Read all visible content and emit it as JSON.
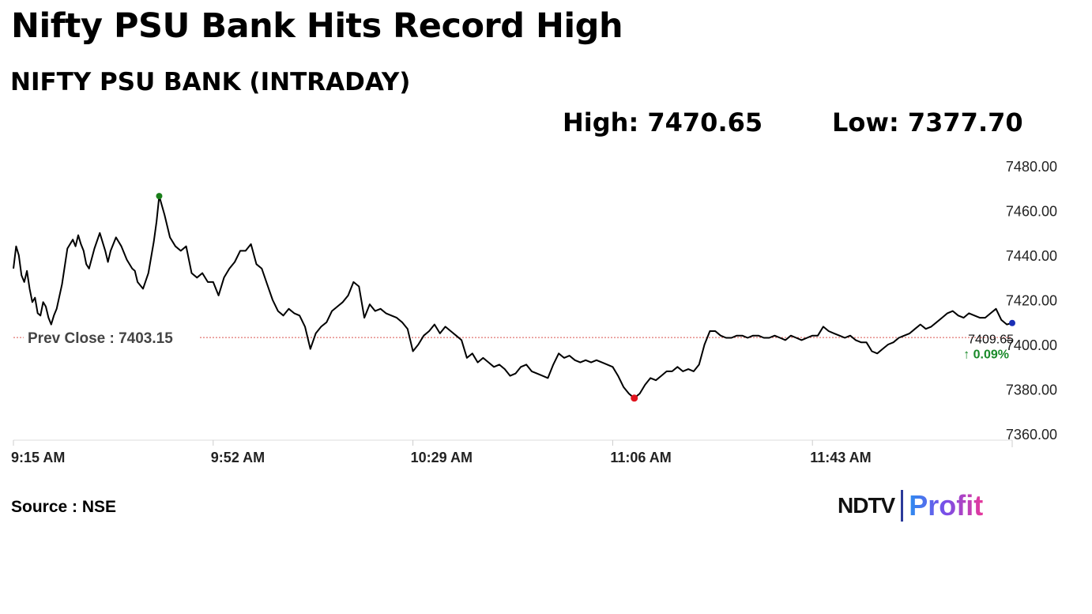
{
  "headline": "Nifty PSU Bank Hits Record High",
  "subheadline": "NIFTY PSU BANK (INTRADAY)",
  "stats": {
    "high": "High: 7470.65",
    "low": "Low: 7377.70"
  },
  "source": "Source : NSE",
  "logo": {
    "ndtv": "NDTV",
    "profit": "Profit"
  },
  "colors": {
    "line": "#000000",
    "high_marker": "#1a7f1a",
    "low_marker": "#e0141e",
    "last_marker": "#1a2fb5",
    "prev_close_line": "#d9534f",
    "change_up": "#1a8a2a",
    "axis_text": "#222222"
  },
  "chart_data": {
    "type": "line",
    "title": "NIFTY PSU BANK (INTRADAY)",
    "xlabel": "",
    "ylabel": "",
    "x_ticks": [
      "9:15 AM",
      "9:52 AM",
      "10:29 AM",
      "11:06 AM",
      "11:43 AM"
    ],
    "y_ticks": [
      "7480.00",
      "7460.00",
      "7440.00",
      "7420.00",
      "7400.00",
      "7380.00",
      "7360.00"
    ],
    "ylim": [
      7360,
      7480
    ],
    "x_range_minutes": [
      0,
      185
    ],
    "grid": false,
    "y_axis_side": "right",
    "prev_close": {
      "value": 7403.15,
      "label": "Prev Close : 7403.15"
    },
    "last": {
      "value": 7409.65,
      "label": "7409.65",
      "change": "↑ 0.09%"
    },
    "high": {
      "value": 7466.5,
      "time": 27
    },
    "low": {
      "value": 7376.0,
      "time": 115
    },
    "series": [
      {
        "values": [
          [
            0,
            7434
          ],
          [
            0.5,
            7444
          ],
          [
            1,
            7440
          ],
          [
            1.5,
            7431
          ],
          [
            2,
            7428
          ],
          [
            2.5,
            7433
          ],
          [
            3,
            7425
          ],
          [
            3.5,
            7419
          ],
          [
            4,
            7421
          ],
          [
            4.5,
            7414
          ],
          [
            5,
            7413
          ],
          [
            5.5,
            7419
          ],
          [
            6,
            7417
          ],
          [
            6.5,
            7412
          ],
          [
            7,
            7409
          ],
          [
            7.5,
            7413
          ],
          [
            8,
            7416
          ],
          [
            9,
            7427
          ],
          [
            10,
            7443
          ],
          [
            11,
            7447
          ],
          [
            11.5,
            7444
          ],
          [
            12,
            7449
          ],
          [
            12.5,
            7445
          ],
          [
            13,
            7442
          ],
          [
            13.5,
            7436
          ],
          [
            14,
            7434
          ],
          [
            15,
            7443
          ],
          [
            16,
            7450
          ],
          [
            17,
            7442
          ],
          [
            17.5,
            7437
          ],
          [
            18,
            7442
          ],
          [
            19,
            7448
          ],
          [
            20,
            7444
          ],
          [
            21,
            7438
          ],
          [
            22,
            7434
          ],
          [
            22.5,
            7433
          ],
          [
            23,
            7428
          ],
          [
            24,
            7425
          ],
          [
            25,
            7432
          ],
          [
            26,
            7446
          ],
          [
            26.5,
            7455
          ],
          [
            27,
            7466.5
          ],
          [
            28,
            7458
          ],
          [
            29,
            7448
          ],
          [
            30,
            7444
          ],
          [
            31,
            7442
          ],
          [
            32,
            7444
          ],
          [
            33,
            7432
          ],
          [
            34,
            7430
          ],
          [
            35,
            7432
          ],
          [
            36,
            7428
          ],
          [
            37,
            7428
          ],
          [
            38,
            7422
          ],
          [
            39,
            7430
          ],
          [
            40,
            7434
          ],
          [
            41,
            7437
          ],
          [
            42,
            7442
          ],
          [
            43,
            7442
          ],
          [
            44,
            7445
          ],
          [
            45,
            7436
          ],
          [
            46,
            7434
          ],
          [
            47,
            7427
          ],
          [
            48,
            7420
          ],
          [
            49,
            7415
          ],
          [
            50,
            7413
          ],
          [
            51,
            7416
          ],
          [
            52,
            7414
          ],
          [
            53,
            7413
          ],
          [
            54,
            7408
          ],
          [
            55,
            7398
          ],
          [
            56,
            7405
          ],
          [
            57,
            7408
          ],
          [
            58,
            7410
          ],
          [
            59,
            7415
          ],
          [
            60,
            7417
          ],
          [
            61,
            7419
          ],
          [
            62,
            7422
          ],
          [
            63,
            7428
          ],
          [
            64,
            7426
          ],
          [
            65,
            7412
          ],
          [
            66,
            7418
          ],
          [
            67,
            7415
          ],
          [
            68,
            7416
          ],
          [
            69,
            7414
          ],
          [
            70,
            7413
          ],
          [
            71,
            7412
          ],
          [
            72,
            7410
          ],
          [
            73,
            7407
          ],
          [
            74,
            7397
          ],
          [
            75,
            7400
          ],
          [
            76,
            7404
          ],
          [
            77,
            7406
          ],
          [
            78,
            7409
          ],
          [
            79,
            7405
          ],
          [
            80,
            7408
          ],
          [
            81,
            7406
          ],
          [
            82,
            7404
          ],
          [
            83,
            7402
          ],
          [
            84,
            7394
          ],
          [
            85,
            7396
          ],
          [
            86,
            7392
          ],
          [
            87,
            7394
          ],
          [
            88,
            7392
          ],
          [
            89,
            7390
          ],
          [
            90,
            7391
          ],
          [
            91,
            7389
          ],
          [
            92,
            7386
          ],
          [
            93,
            7387
          ],
          [
            94,
            7390
          ],
          [
            95,
            7391
          ],
          [
            96,
            7388
          ],
          [
            97,
            7387
          ],
          [
            98,
            7386
          ],
          [
            99,
            7385
          ],
          [
            100,
            7391
          ],
          [
            101,
            7396
          ],
          [
            102,
            7394
          ],
          [
            103,
            7395
          ],
          [
            104,
            7393
          ],
          [
            105,
            7392
          ],
          [
            106,
            7393
          ],
          [
            107,
            7392
          ],
          [
            108,
            7393
          ],
          [
            109,
            7392
          ],
          [
            110,
            7391
          ],
          [
            111,
            7390
          ],
          [
            112,
            7386
          ],
          [
            113,
            7381
          ],
          [
            114,
            7378
          ],
          [
            115,
            7376
          ],
          [
            116,
            7378
          ],
          [
            117,
            7382
          ],
          [
            118,
            7385
          ],
          [
            119,
            7384
          ],
          [
            120,
            7386
          ],
          [
            121,
            7388
          ],
          [
            122,
            7388
          ],
          [
            123,
            7390
          ],
          [
            124,
            7388
          ],
          [
            125,
            7389
          ],
          [
            126,
            7388
          ],
          [
            127,
            7391
          ],
          [
            128,
            7400
          ],
          [
            129,
            7406
          ],
          [
            130,
            7406
          ],
          [
            131,
            7404
          ],
          [
            132,
            7403
          ],
          [
            133,
            7403
          ],
          [
            134,
            7404
          ],
          [
            135,
            7404
          ],
          [
            136,
            7403
          ],
          [
            137,
            7404
          ],
          [
            138,
            7404
          ],
          [
            139,
            7403
          ],
          [
            140,
            7403
          ],
          [
            141,
            7404
          ],
          [
            142,
            7403
          ],
          [
            143,
            7402
          ],
          [
            144,
            7404
          ],
          [
            145,
            7403
          ],
          [
            146,
            7402
          ],
          [
            147,
            7403
          ],
          [
            148,
            7404
          ],
          [
            149,
            7404
          ],
          [
            150,
            7408
          ],
          [
            151,
            7406
          ],
          [
            152,
            7405
          ],
          [
            153,
            7404
          ],
          [
            154,
            7403
          ],
          [
            155,
            7404
          ],
          [
            156,
            7402
          ],
          [
            157,
            7401
          ],
          [
            158,
            7401
          ],
          [
            159,
            7397
          ],
          [
            160,
            7396
          ],
          [
            161,
            7398
          ],
          [
            162,
            7400
          ],
          [
            163,
            7401
          ],
          [
            164,
            7403
          ],
          [
            165,
            7404
          ],
          [
            166,
            7405
          ],
          [
            167,
            7407
          ],
          [
            168,
            7409
          ],
          [
            169,
            7407
          ],
          [
            170,
            7408
          ],
          [
            171,
            7410
          ],
          [
            172,
            7412
          ],
          [
            173,
            7414
          ],
          [
            174,
            7415
          ],
          [
            175,
            7413
          ],
          [
            176,
            7412
          ],
          [
            177,
            7414
          ],
          [
            178,
            7413
          ],
          [
            179,
            7412
          ],
          [
            180,
            7412
          ],
          [
            181,
            7414
          ],
          [
            182,
            7416
          ],
          [
            183,
            7411
          ],
          [
            184,
            7409
          ],
          [
            185,
            7409.65
          ]
        ]
      }
    ]
  }
}
